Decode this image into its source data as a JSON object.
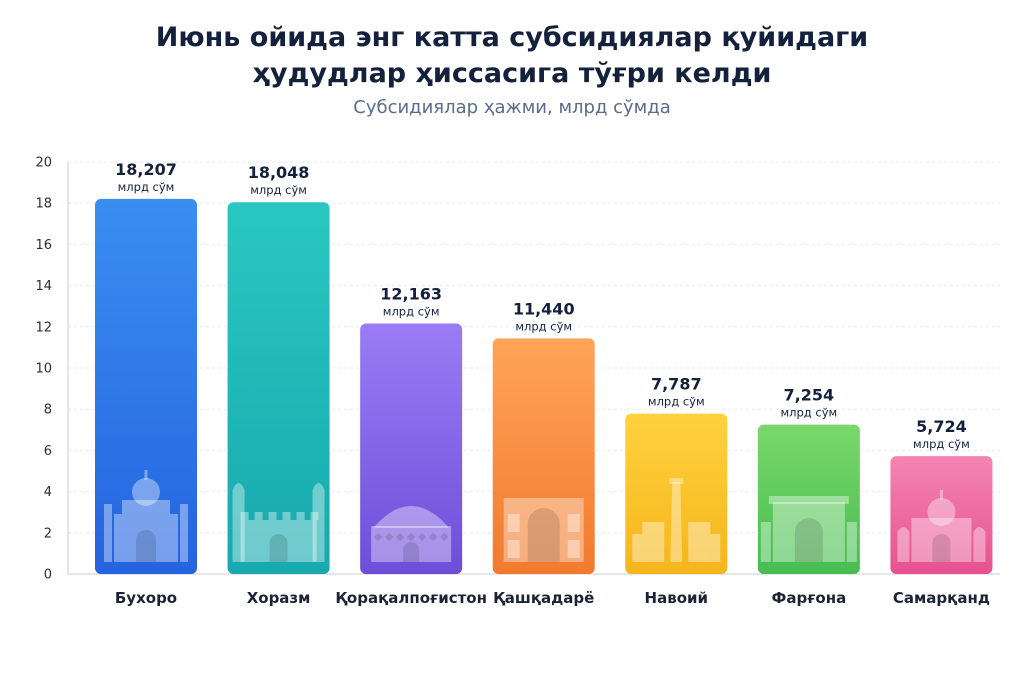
{
  "chart_data": {
    "type": "bar",
    "title_lines": [
      "Июнь ойида энг катта субсидиялар қуйидаги",
      "ҳудудлар ҳиссасига тўғри келди"
    ],
    "subtitle": "Субсидиялар ҳажми, млрд сўмда",
    "xlabel": "",
    "ylabel": "",
    "ylim": [
      0,
      20
    ],
    "yticks": [
      "0",
      "2",
      "4",
      "6",
      "8",
      "10",
      "12",
      "14",
      "16",
      "18",
      "20"
    ],
    "grid": true,
    "unit": "млрд сўм",
    "categories": [
      "Бухоро",
      "Хоразм",
      "Қорақалпоғистон",
      "Қашқадарё",
      "Навоий",
      "Фарғона",
      "Самарқанд"
    ],
    "values": [
      18.207,
      18.048,
      12.163,
      11.44,
      7.787,
      7.254,
      5.724
    ],
    "value_labels": [
      "18,207",
      "18,048",
      "12,163",
      "11,440",
      "7,787",
      "7,254",
      "5,724"
    ],
    "colors": [
      [
        "#3a8ef0",
        "#2563e0"
      ],
      [
        "#2ac7c2",
        "#17a9ad"
      ],
      [
        "#9b7cf5",
        "#6d4ed8"
      ],
      [
        "#ffa458",
        "#f27a2e"
      ],
      [
        "#ffd23e",
        "#f5b51c"
      ],
      [
        "#7ad86a",
        "#46bd52"
      ],
      [
        "#f484b5",
        "#e6528f"
      ]
    ],
    "icons": [
      "mosque-icon",
      "fortress-icon",
      "yurt-icon",
      "madrasa-icon",
      "minaret-icon",
      "gate-icon",
      "mausoleum-icon"
    ]
  }
}
